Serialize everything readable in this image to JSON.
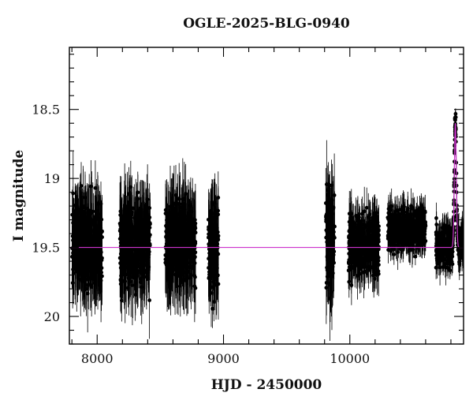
{
  "chart_data": {
    "type": "scatter",
    "title": "OGLE-2025-BLG-0940",
    "xlabel": "HJD - 2450000",
    "ylabel": "I magnitude",
    "xlim": [
      7780,
      10900
    ],
    "ylim": [
      20.2,
      18.05
    ],
    "y_inverted": true,
    "x_ticks": [
      8000,
      9000,
      10000
    ],
    "x_tick_labels": [
      "8000",
      "9000",
      "10000"
    ],
    "y_ticks": [
      18.5,
      19,
      19.5,
      20
    ],
    "y_tick_labels": [
      "18.5",
      "19",
      "19.5",
      "20"
    ],
    "grid": false,
    "legend": "none",
    "observing_seasons": [
      {
        "start": 7800,
        "end": 8040,
        "mean_mag": 19.47,
        "scatter_mag": 0.2,
        "errorbar_mag": 0.28
      },
      {
        "start": 8180,
        "end": 8420,
        "mean_mag": 19.47,
        "scatter_mag": 0.2,
        "errorbar_mag": 0.28
      },
      {
        "start": 8540,
        "end": 8780,
        "mean_mag": 19.47,
        "scatter_mag": 0.2,
        "errorbar_mag": 0.28
      },
      {
        "start": 8880,
        "end": 8960,
        "mean_mag": 19.5,
        "scatter_mag": 0.22,
        "errorbar_mag": 0.28
      },
      {
        "start": 9810,
        "end": 9880,
        "mean_mag": 19.45,
        "scatter_mag": 0.25,
        "errorbar_mag": 0.3
      },
      {
        "start": 9990,
        "end": 10230,
        "mean_mag": 19.48,
        "scatter_mag": 0.15,
        "errorbar_mag": 0.17
      },
      {
        "start": 10300,
        "end": 10600,
        "mean_mag": 19.37,
        "scatter_mag": 0.1,
        "errorbar_mag": 0.12
      },
      {
        "start": 10680,
        "end": 10900,
        "mean_mag": 19.48,
        "scatter_mag": 0.1,
        "errorbar_mag": 0.12
      }
    ],
    "event": {
      "t0": 10835,
      "peak_mag": 18.52,
      "duration_days": 20
    },
    "model": {
      "name": "",
      "baseline_mag": 19.5,
      "peak_mag": 18.6,
      "t0": 10835,
      "tE_days": 22,
      "color": "#cc33cc"
    },
    "colors": {
      "points": "#000000",
      "errorbars": "#000000",
      "model": "#cc33cc",
      "axes": "#000000"
    }
  }
}
